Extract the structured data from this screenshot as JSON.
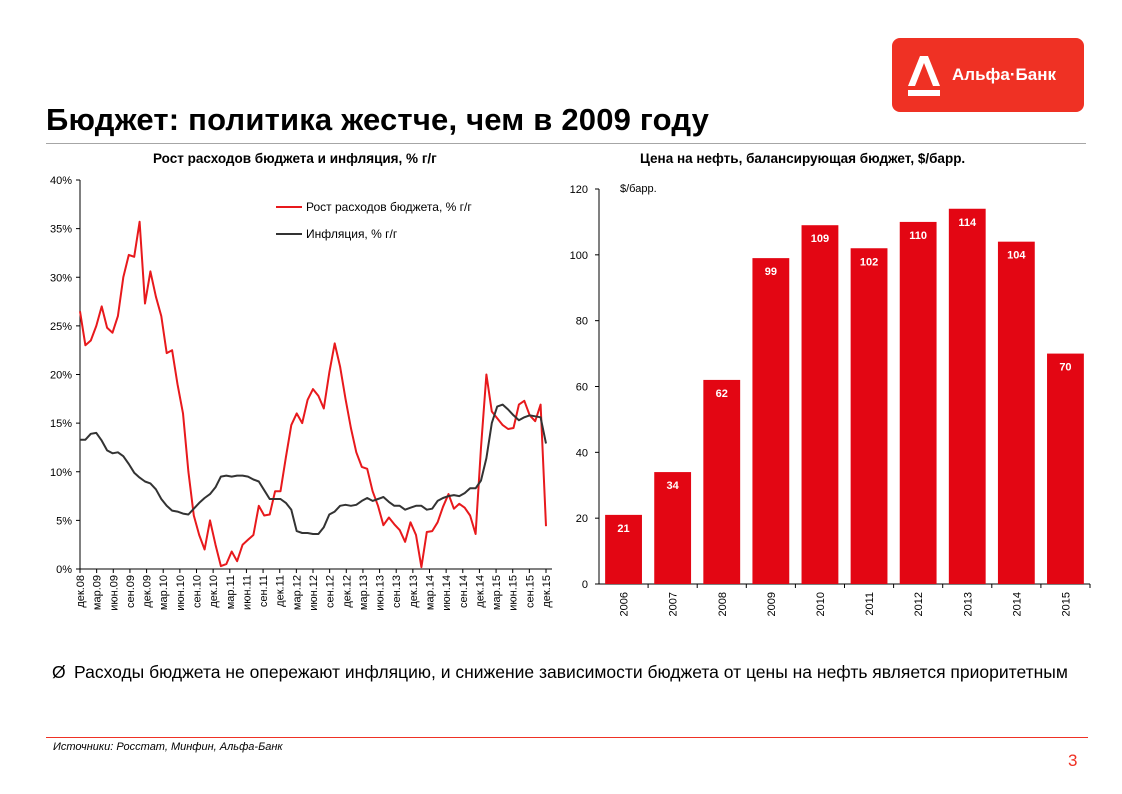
{
  "header": {
    "title": "Бюджет: политика жестче, чем в 2009 году",
    "logo_text": "Альфа·Банк",
    "brand_color": "#ef3124"
  },
  "chart_data": [
    {
      "type": "line",
      "title": "Рост расходов бюджета и инфляция, % г/г",
      "xlabel": "",
      "ylabel": "",
      "ylim": [
        0,
        40
      ],
      "yticks": [
        "0%",
        "5%",
        "10%",
        "15%",
        "20%",
        "25%",
        "30%",
        "35%",
        "40%"
      ],
      "x_tick_labels": [
        "дек.08",
        "мар.09",
        "июн.09",
        "сен.09",
        "дек.09",
        "мар.10",
        "июн.10",
        "сен.10",
        "дек.10",
        "мар.11",
        "июн.11",
        "сен.11",
        "дек.11",
        "мар.12",
        "июн.12",
        "сен.12",
        "дек.12",
        "мар.13",
        "июн.13",
        "сен.13",
        "дек.13",
        "мар.14",
        "июн.14",
        "сен.14",
        "дек.14",
        "мар.15",
        "июн.15",
        "сен.15",
        "дек.15"
      ],
      "legend_position": "top-right",
      "grid": false,
      "series": [
        {
          "name": "Рост расходов бюджета, % г/г",
          "color": "#e8191c",
          "values": [
            26.5,
            23.0,
            23.5,
            25.0,
            27.0,
            24.8,
            24.3,
            26.0,
            30.0,
            32.3,
            32.1,
            35.7,
            27.3,
            30.6,
            28.0,
            26.0,
            22.2,
            22.5,
            19.0,
            16.0,
            10.0,
            5.5,
            3.5,
            2.0,
            5.0,
            2.5,
            0.3,
            0.5,
            1.8,
            0.8,
            2.5,
            3.0,
            3.5,
            6.5,
            5.5,
            5.6,
            8.0,
            8.0,
            11.5,
            14.8,
            16.0,
            15.0,
            17.4,
            18.5,
            17.8,
            16.5,
            20.2,
            23.2,
            20.8,
            17.5,
            14.5,
            12.0,
            10.5,
            10.3,
            8.0,
            6.5,
            4.5,
            5.3,
            4.6,
            4.0,
            2.8,
            4.8,
            3.5,
            0.2,
            3.8,
            3.9,
            4.8,
            6.4,
            7.7,
            6.2,
            6.7,
            6.3,
            5.5,
            3.6,
            12.5,
            20.0,
            16.2,
            15.5,
            14.8,
            14.4,
            14.5,
            16.9,
            17.3,
            15.8,
            15.2,
            16.9,
            4.4
          ]
        },
        {
          "name": "Инфляция,  % г/г",
          "color": "#333333",
          "values": [
            13.3,
            13.3,
            13.9,
            14.0,
            13.2,
            12.2,
            11.9,
            12.0,
            11.6,
            10.8,
            9.9,
            9.4,
            9.0,
            8.8,
            8.2,
            7.2,
            6.5,
            6.0,
            5.9,
            5.7,
            5.6,
            6.2,
            6.8,
            7.3,
            7.7,
            8.4,
            9.5,
            9.6,
            9.5,
            9.6,
            9.6,
            9.5,
            9.2,
            9.0,
            8.1,
            7.2,
            7.2,
            7.2,
            6.8,
            6.1,
            3.9,
            3.7,
            3.7,
            3.6,
            3.6,
            4.3,
            5.6,
            5.9,
            6.5,
            6.6,
            6.5,
            6.6,
            7.0,
            7.3,
            7.0,
            7.2,
            7.4,
            6.9,
            6.5,
            6.5,
            6.1,
            6.3,
            6.5,
            6.5,
            6.1,
            6.2,
            7.0,
            7.3,
            7.5,
            7.6,
            7.5,
            7.8,
            8.3,
            8.3,
            9.1,
            11.4,
            15.0,
            16.7,
            16.9,
            16.4,
            15.8,
            15.3,
            15.6,
            15.8,
            15.7,
            15.6,
            12.9
          ]
        }
      ]
    },
    {
      "type": "bar",
      "title": "Цена на нефть, балансирующая бюджет, $/барр.",
      "unit_label": "$/барр.",
      "xlabel": "",
      "ylabel": "",
      "ylim": [
        0,
        120
      ],
      "yticks": [
        "0",
        "20",
        "40",
        "60",
        "80",
        "100",
        "120"
      ],
      "categories": [
        "2006",
        "2007",
        "2008",
        "2009",
        "2010",
        "2011",
        "2012",
        "2013",
        "2014",
        "2015"
      ],
      "values": [
        21,
        34,
        62,
        99,
        109,
        102,
        110,
        114,
        104,
        70
      ],
      "data_labels": [
        "21",
        "34",
        "62",
        "99",
        "109",
        "102",
        "110",
        "114",
        "104",
        "70"
      ],
      "bar_color": "#e30613",
      "grid": false
    }
  ],
  "bullet": {
    "mark": "Ø",
    "text": "Расходы бюджета не опережают инфляцию, и снижение зависимости бюджета от цены на нефть является приоритетным"
  },
  "footer": {
    "source": "Источники: Росстат, Минфин, Альфа-Банк",
    "page_number": "3"
  }
}
